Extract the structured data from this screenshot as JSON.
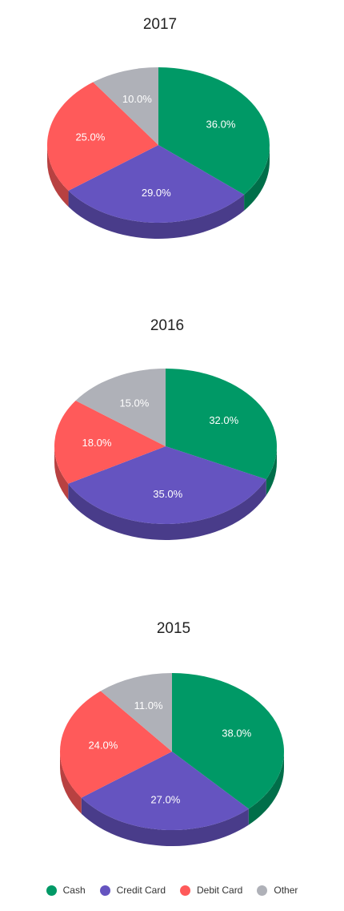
{
  "chart_data": [
    {
      "type": "pie",
      "title": "2017",
      "categories": [
        "Cash",
        "Credit Card",
        "Debit Card",
        "Other"
      ],
      "values": [
        36.0,
        29.0,
        25.0,
        10.0
      ],
      "labels": [
        "36.0%",
        "29.0%",
        "25.0%",
        "10.0%"
      ]
    },
    {
      "type": "pie",
      "title": "2016",
      "categories": [
        "Cash",
        "Credit Card",
        "Debit Card",
        "Other"
      ],
      "values": [
        32.0,
        35.0,
        18.0,
        15.0
      ],
      "labels": [
        "32.0%",
        "35.0%",
        "18.0%",
        "15.0%"
      ]
    },
    {
      "type": "pie",
      "title": "2015",
      "categories": [
        "Cash",
        "Credit Card",
        "Debit Card",
        "Other"
      ],
      "values": [
        38.0,
        27.0,
        24.0,
        11.0
      ],
      "labels": [
        "38.0%",
        "27.0%",
        "24.0%",
        "11.0%"
      ]
    }
  ],
  "legend": {
    "placement": "bottom",
    "items": [
      {
        "label": "Cash",
        "color": "#009966"
      },
      {
        "label": "Credit Card",
        "color": "#6554c0"
      },
      {
        "label": "Debit Card",
        "color": "#ff5a5a"
      },
      {
        "label": "Other",
        "color": "#afb1b8"
      }
    ]
  }
}
